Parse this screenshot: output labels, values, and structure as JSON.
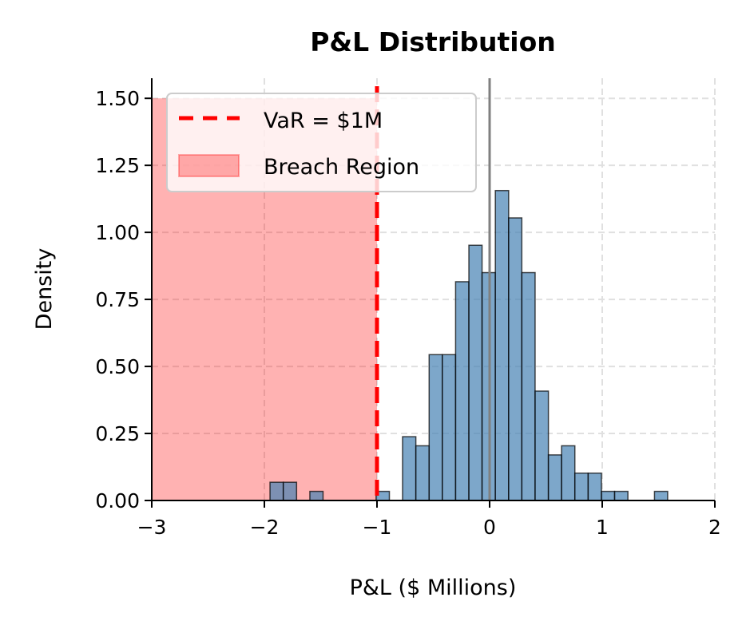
{
  "chart_data": {
    "type": "histogram",
    "title": "P&L Distribution",
    "xlabel": "P&L ($ Millions)",
    "ylabel": "Density",
    "xlim": [
      -3,
      2
    ],
    "ylim": [
      0,
      1.575
    ],
    "xticks": [
      -3,
      -2,
      -1,
      0,
      1,
      2
    ],
    "xtick_labels": [
      "−3",
      "−2",
      "−1",
      "0",
      "1",
      "2"
    ],
    "yticks": [
      0,
      0.25,
      0.5,
      0.75,
      1.0,
      1.25,
      1.5
    ],
    "ytick_labels": [
      "0.00",
      "0.25",
      "0.50",
      "0.75",
      "1.00",
      "1.25",
      "1.50"
    ],
    "grid": true,
    "legend_position": "top-left",
    "bins": [
      {
        "x0": -1.95,
        "x1": -1.832,
        "density": 0.068
      },
      {
        "x0": -1.832,
        "x1": -1.714,
        "density": 0.068
      },
      {
        "x0": -1.596,
        "x1": -1.479,
        "density": 0.034
      },
      {
        "x0": -1.008,
        "x1": -0.89,
        "density": 0.034
      },
      {
        "x0": -0.773,
        "x1": -0.655,
        "density": 0.238
      },
      {
        "x0": -0.655,
        "x1": -0.537,
        "density": 0.204
      },
      {
        "x0": -0.537,
        "x1": -0.42,
        "density": 0.544
      },
      {
        "x0": -0.42,
        "x1": -0.302,
        "density": 0.544
      },
      {
        "x0": -0.302,
        "x1": -0.184,
        "density": 0.816
      },
      {
        "x0": -0.184,
        "x1": -0.067,
        "density": 0.952
      },
      {
        "x0": -0.067,
        "x1": 0.051,
        "density": 0.85
      },
      {
        "x0": 0.051,
        "x1": 0.169,
        "density": 1.156
      },
      {
        "x0": 0.169,
        "x1": 0.286,
        "density": 1.054
      },
      {
        "x0": 0.286,
        "x1": 0.404,
        "density": 0.85
      },
      {
        "x0": 0.404,
        "x1": 0.522,
        "density": 0.408
      },
      {
        "x0": 0.522,
        "x1": 0.639,
        "density": 0.17
      },
      {
        "x0": 0.639,
        "x1": 0.757,
        "density": 0.204
      },
      {
        "x0": 0.757,
        "x1": 0.875,
        "density": 0.102
      },
      {
        "x0": 0.875,
        "x1": 0.993,
        "density": 0.102
      },
      {
        "x0": 0.993,
        "x1": 1.11,
        "density": 0.034
      },
      {
        "x0": 1.11,
        "x1": 1.228,
        "density": 0.034
      },
      {
        "x0": 1.464,
        "x1": 1.581,
        "density": 0.034
      }
    ],
    "var_line": {
      "x": -1,
      "label": "VaR = $1M",
      "color": "#ff0000"
    },
    "zero_line": {
      "x": 0,
      "color": "#808080"
    },
    "breach_region": {
      "x0": -3,
      "x1": -1,
      "y1": 1.5,
      "label": "Breach Region",
      "color": "#ff0000",
      "alpha": 0.3
    },
    "bar_color": "#4682b4",
    "bar_edge_color": "#000000"
  }
}
